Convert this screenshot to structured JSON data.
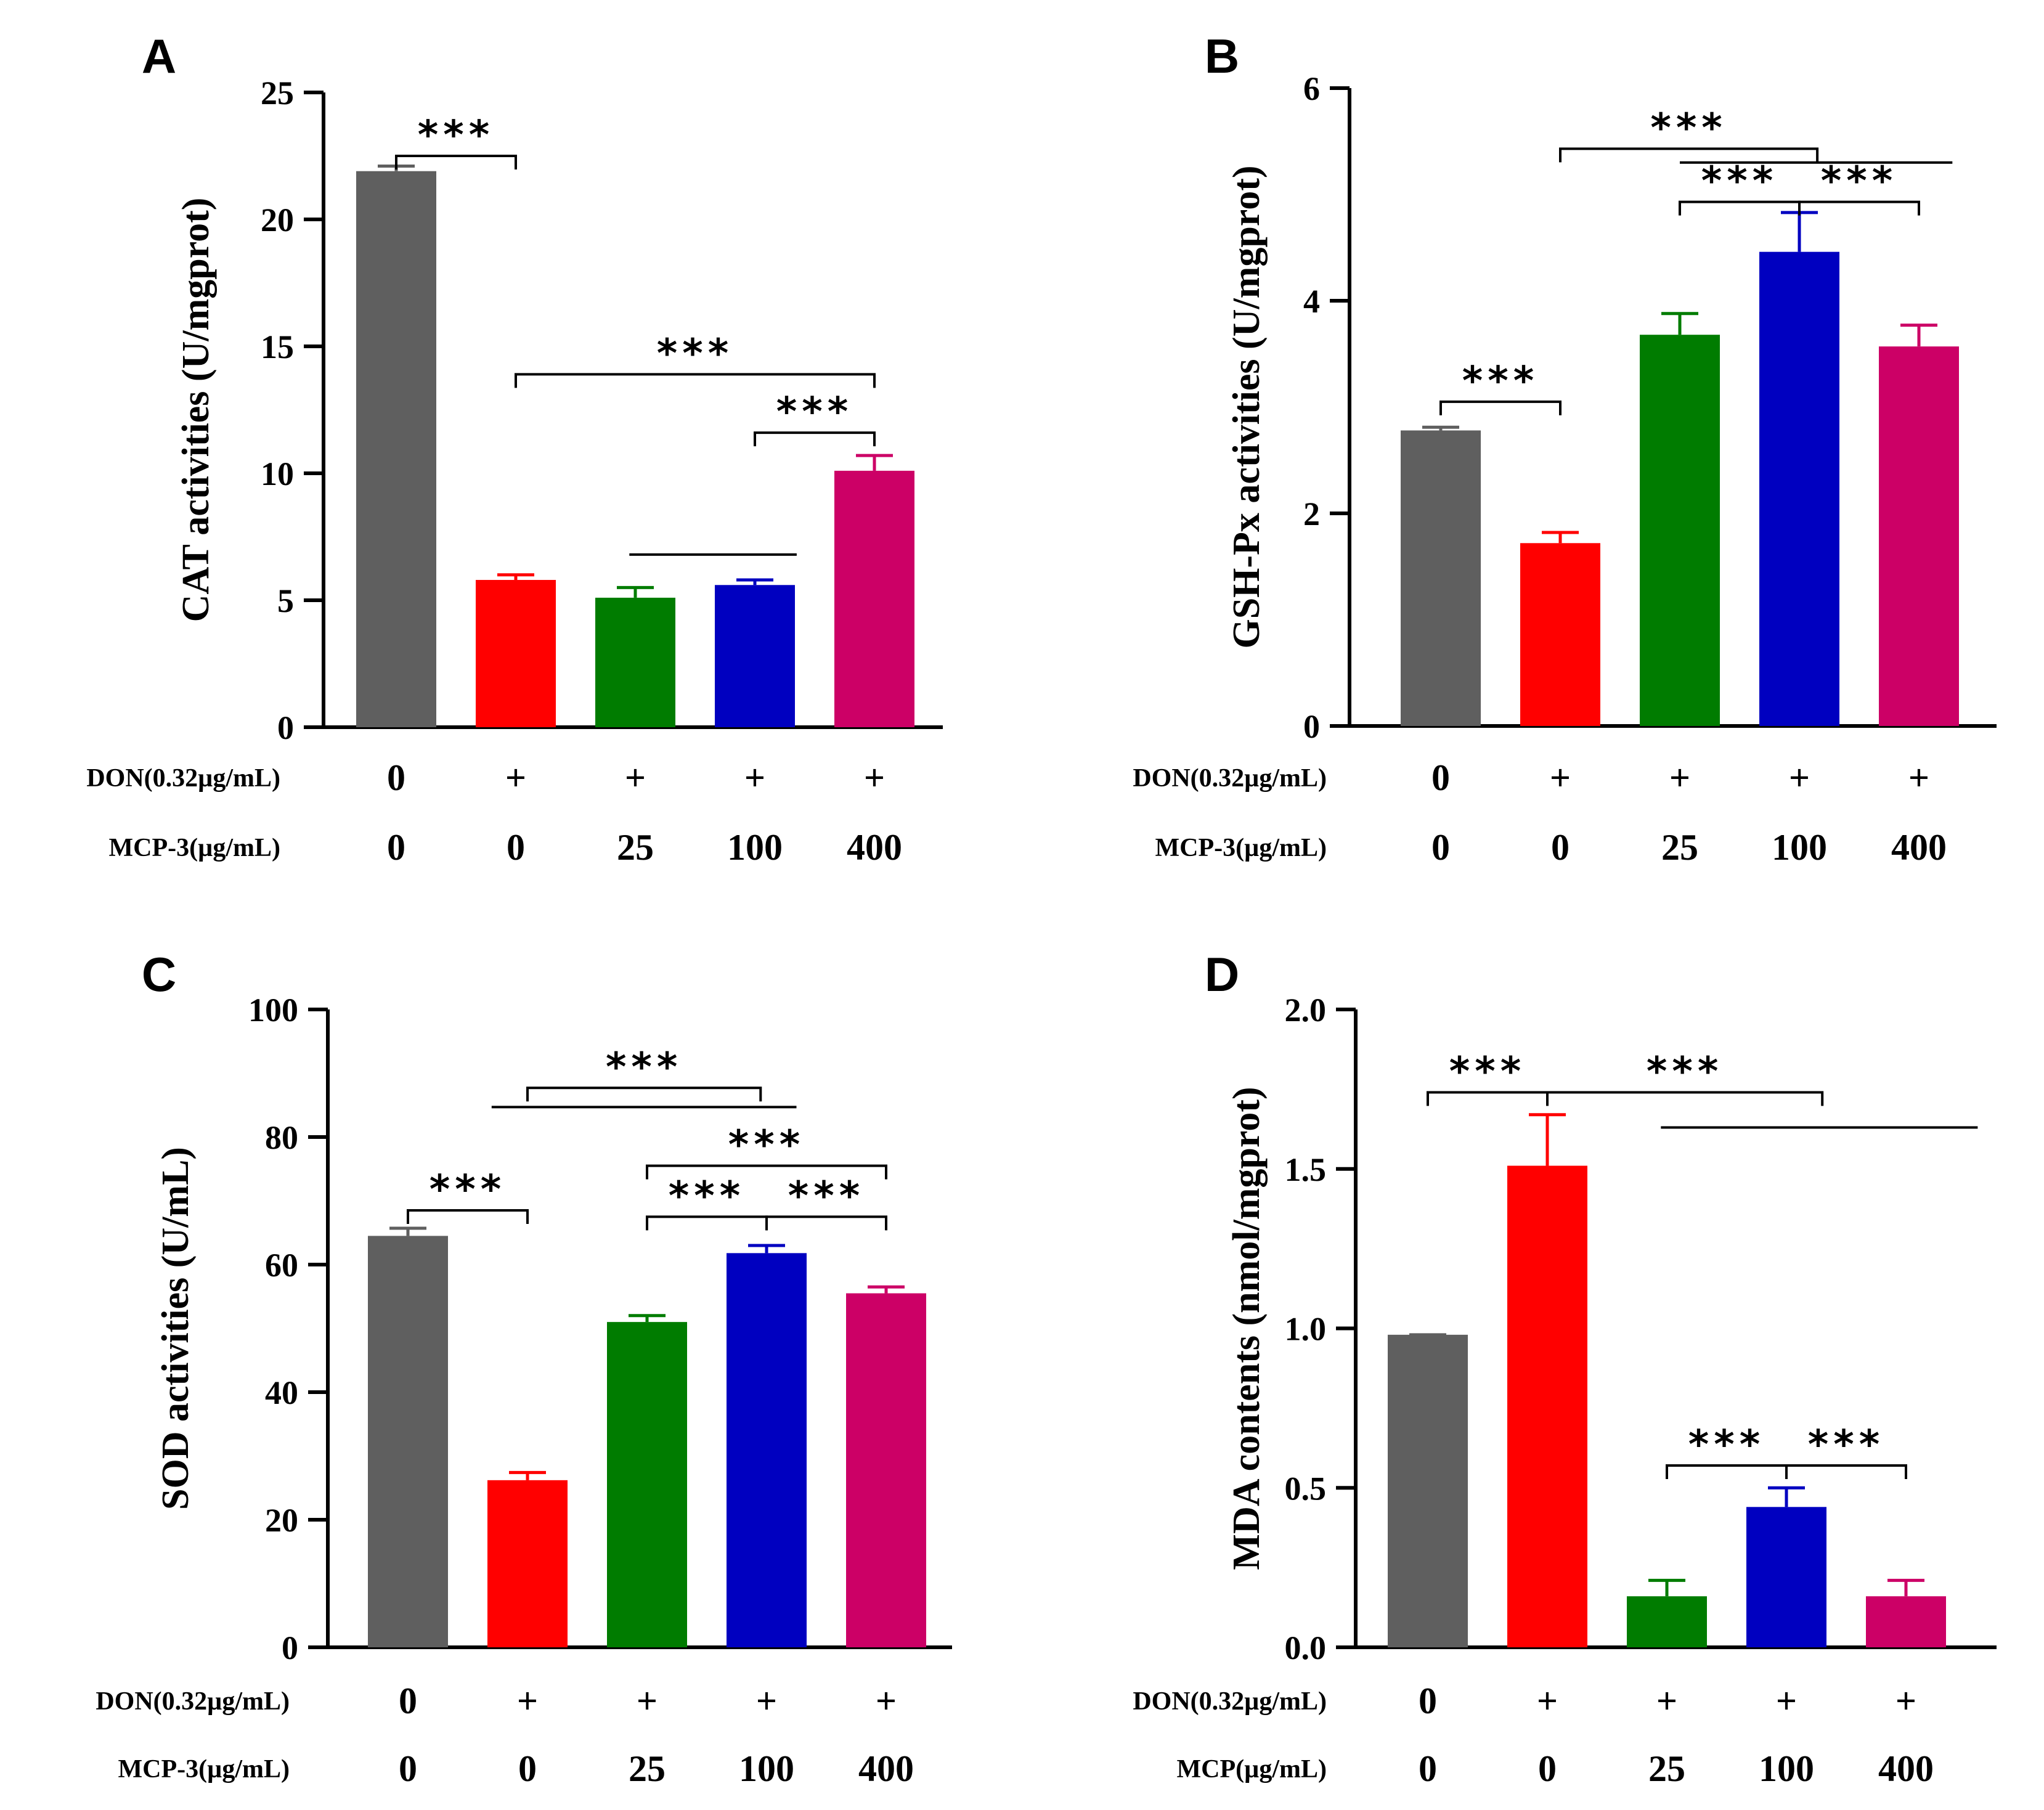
{
  "figure": {
    "row_labels": [
      "DON(0.32µg/mL)"
    ]
  },
  "colors": {
    "groups": [
      "#5f5f5f",
      "#ff0000",
      "#007c00",
      "#0000c0",
      "#cc0066"
    ],
    "axis": "#000000"
  },
  "chart_data": [
    {
      "panel": "A",
      "type": "bar",
      "ylabel": "CAT activities (U/mgprot)",
      "ylim": [
        0,
        25
      ],
      "yticks": [
        0,
        5,
        10,
        15,
        20,
        25
      ],
      "ytick_labels": [
        "0",
        "5",
        "10",
        "15",
        "20",
        "25"
      ],
      "row1_label": "DON(0.32µg/mL)",
      "row1_values": [
        "0",
        "+",
        "+",
        "+",
        "+"
      ],
      "row2_label": "MCP-3(µg/mL)",
      "row2_values": [
        "0",
        "0",
        "25",
        "100",
        "400"
      ],
      "values": [
        21.9,
        5.8,
        5.1,
        5.6,
        10.1
      ],
      "errors": [
        0.2,
        0.2,
        0.4,
        0.2,
        0.6
      ],
      "annotations": [
        {
          "label": "***",
          "from": 0,
          "to": 1,
          "y": 22.5
        },
        {
          "label": "***",
          "from": 1,
          "to": 4,
          "y": 13.9
        },
        {
          "label": "***",
          "from": 3,
          "to": 4,
          "y": 11.6
        },
        {
          "label": "",
          "from": 1.95,
          "to": 3.35,
          "y": 6.8,
          "plain": true
        }
      ]
    },
    {
      "panel": "B",
      "type": "bar",
      "ylabel": "GSH-Px activities (U/mgprot)",
      "ylim": [
        0,
        6
      ],
      "yticks": [
        0,
        2,
        4,
        6
      ],
      "ytick_labels": [
        "0",
        "2",
        "4",
        "6"
      ],
      "row1_label": "DON(0.32µg/mL)",
      "row1_values": [
        "0",
        "+",
        "+",
        "+",
        "+"
      ],
      "row2_label": "MCP-3(µg/mL)",
      "row2_values": [
        "0",
        "0",
        "25",
        "100",
        "400"
      ],
      "values": [
        2.78,
        1.72,
        3.68,
        4.46,
        3.57
      ],
      "errors": [
        0.03,
        0.1,
        0.2,
        0.37,
        0.2
      ],
      "annotations": [
        {
          "label": "***",
          "from": 0,
          "to": 1,
          "y": 3.05
        },
        {
          "label": "***",
          "from": 1,
          "to": 3.15,
          "y": 5.43
        },
        {
          "label": "",
          "from": 2,
          "to": 4.28,
          "y": 5.3,
          "plain": true
        },
        {
          "label": "***",
          "from": 2,
          "to": 3,
          "y": 4.93
        },
        {
          "label": "***",
          "from": 3,
          "to": 4,
          "y": 4.93
        }
      ]
    },
    {
      "panel": "C",
      "type": "bar",
      "ylabel": "SOD activities (U/mL)",
      "ylim": [
        0,
        100
      ],
      "yticks": [
        0,
        20,
        40,
        60,
        80,
        100
      ],
      "ytick_labels": [
        "0",
        "20",
        "40",
        "60",
        "80",
        "100"
      ],
      "row1_label": "DON(0.32µg/mL)",
      "row1_values": [
        "0",
        "+",
        "+",
        "+",
        "+"
      ],
      "row2_label": "MCP-3(µg/mL)",
      "row2_values": [
        "0",
        "0",
        "25",
        "100",
        "400"
      ],
      "values": [
        64.5,
        26.2,
        51.0,
        61.8,
        55.5
      ],
      "errors": [
        1.2,
        1.2,
        1.0,
        1.2,
        1.0
      ],
      "annotations": [
        {
          "label": "***",
          "from": 0,
          "to": 1,
          "y": 68.5
        },
        {
          "label": "***",
          "from": 1,
          "to": 2.95,
          "y": 87.7
        },
        {
          "label": "",
          "from": 0.7,
          "to": 3.25,
          "y": 84.7,
          "plain": true
        },
        {
          "label": "***",
          "from": 2,
          "to": 4,
          "y": 75.5
        },
        {
          "label": "***",
          "from": 2,
          "to": 3,
          "y": 67.5
        },
        {
          "label": "***",
          "from": 3,
          "to": 4,
          "y": 67.5
        }
      ]
    },
    {
      "panel": "D",
      "type": "bar",
      "ylabel": "MDA contents (nmol/mgprot)",
      "ylim": [
        0,
        2.0
      ],
      "yticks": [
        0,
        0.5,
        1.0,
        1.5,
        2.0
      ],
      "ytick_labels": [
        "0.0",
        "0.5",
        "1.0",
        "1.5",
        "2.0"
      ],
      "row1_label": "DON(0.32µg/mL)",
      "row1_values": [
        "0",
        "+",
        "+",
        "+",
        "+"
      ],
      "row2_label": "MCP(µg/mL)",
      "row2_values": [
        "0",
        "0",
        "25",
        "100",
        "400"
      ],
      "values": [
        0.98,
        1.51,
        0.16,
        0.44,
        0.16
      ],
      "errors": [
        0.0,
        0.16,
        0.05,
        0.06,
        0.05
      ],
      "annotations": [
        {
          "label": "***",
          "from": 0,
          "to": 1,
          "y": 1.74
        },
        {
          "label": "***",
          "from": 1,
          "to": 3.3,
          "y": 1.74
        },
        {
          "label": "",
          "from": 1.95,
          "to": 4.6,
          "y": 1.63,
          "plain": true
        },
        {
          "label": "***",
          "from": 2,
          "to": 3,
          "y": 0.57
        },
        {
          "label": "***",
          "from": 3,
          "to": 4,
          "y": 0.57
        }
      ]
    }
  ]
}
